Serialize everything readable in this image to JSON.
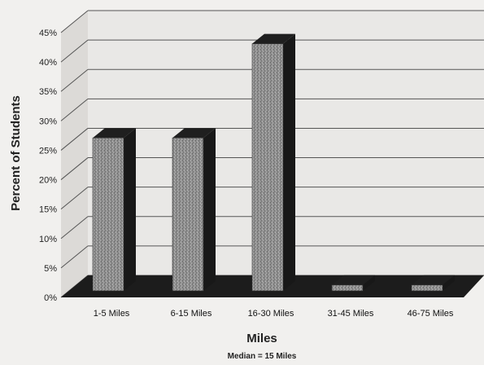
{
  "chart_data": {
    "type": "bar",
    "xlabel": "Miles",
    "ylabel": "Percent of Students",
    "note": "Median = 15 Miles",
    "categories": [
      "1-5 Miles",
      "6-15 Miles",
      "16-30 Miles",
      "31-45 Miles",
      "46-75 Miles"
    ],
    "values": [
      26,
      26,
      42,
      1,
      1
    ],
    "ylim": [
      0,
      45
    ],
    "yticks": [
      "0%",
      "5%",
      "10%",
      "15%",
      "20%",
      "25%",
      "30%",
      "35%",
      "40%",
      "45%"
    ],
    "grid": true,
    "legend": "none",
    "colors": {
      "bar_face": "#8f8f8f",
      "bar_top": "#1f1f1f",
      "bar_side": "#181818",
      "floor": "#1c1c1c",
      "grid": "#555555",
      "wall": "#e9e8e6"
    }
  }
}
